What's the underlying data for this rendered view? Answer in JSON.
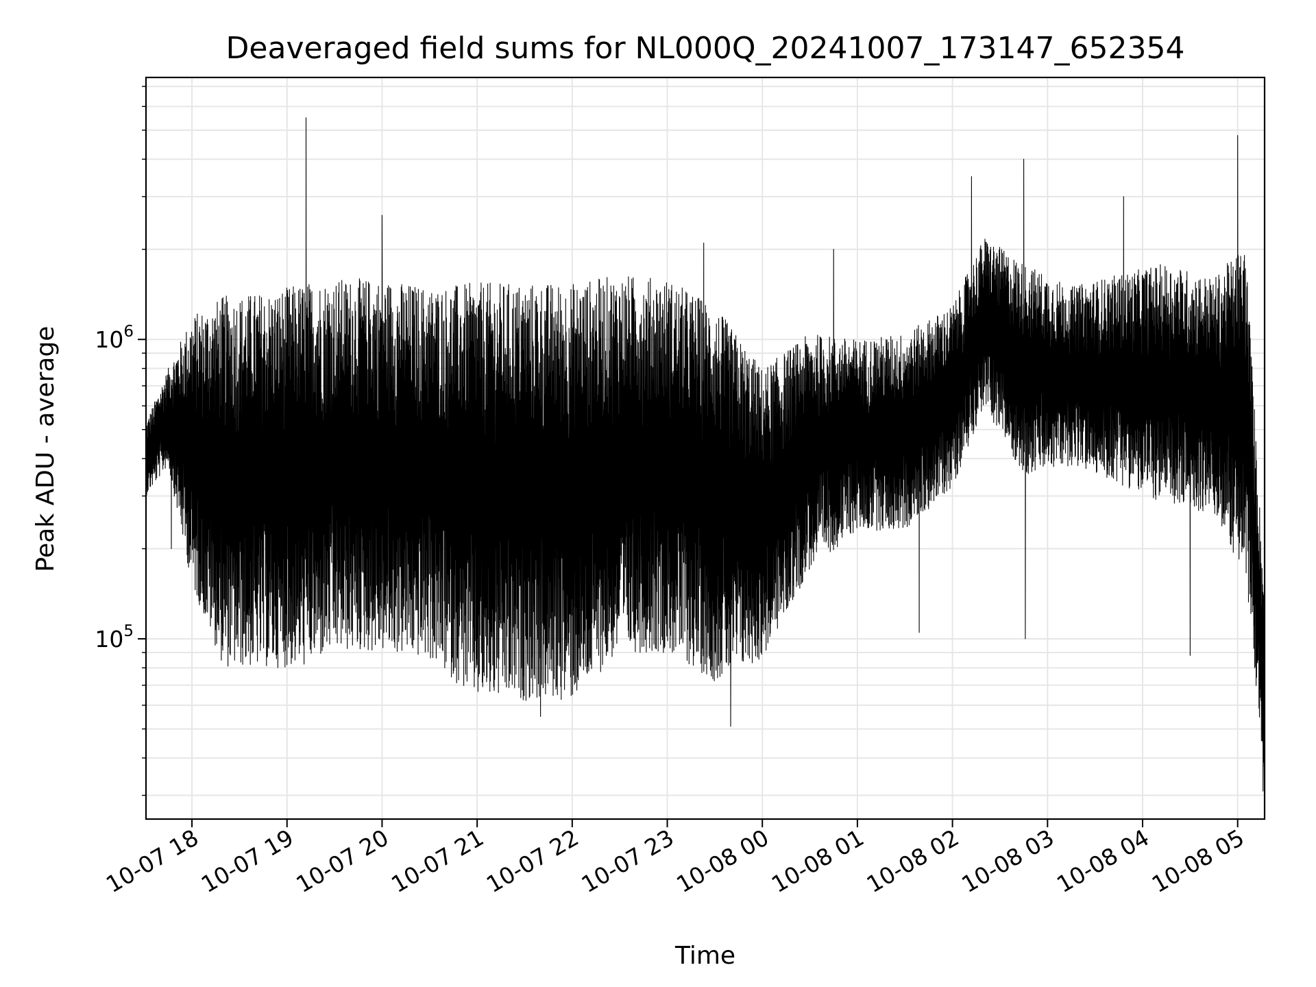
{
  "chart_data": {
    "type": "line",
    "title": "Deaveraged field sums for NL000Q_20241007_173147_652354",
    "xlabel": "Time",
    "ylabel": "Peak ADU - average",
    "yscale": "log",
    "ylim": [
      25000,
      7500000
    ],
    "xlim": [
      "2024-10-07 17:31",
      "2024-10-08 05:17"
    ],
    "grid": true,
    "line_color": "#000000",
    "grid_color": "#e6e6e6",
    "x_ticks": [
      "10-07 18",
      "10-07 19",
      "10-07 20",
      "10-07 21",
      "10-07 22",
      "10-07 23",
      "10-08 00",
      "10-08 01",
      "10-08 02",
      "10-08 03",
      "10-08 04",
      "10-08 05"
    ],
    "y_ticks": [
      {
        "base": "10",
        "exp": "5",
        "value": 100000
      },
      {
        "base": "10",
        "exp": "6",
        "value": 1000000
      }
    ],
    "series": [
      {
        "x": [
          "2024-10-07 17:31",
          "2024-10-07 17:45",
          "2024-10-07 18:00",
          "2024-10-07 18:20",
          "2024-10-07 18:50",
          "2024-10-07 19:10",
          "2024-10-07 19:30",
          "2024-10-07 20:00",
          "2024-10-07 20:30",
          "2024-10-07 21:00",
          "2024-10-07 21:30",
          "2024-10-07 22:00",
          "2024-10-07 22:30",
          "2024-10-07 23:00",
          "2024-10-07 23:30",
          "2024-10-08 00:00",
          "2024-10-08 00:30",
          "2024-10-08 01:00",
          "2024-10-08 01:30",
          "2024-10-08 02:00",
          "2024-10-08 02:20",
          "2024-10-08 02:45",
          "2024-10-08 03:15",
          "2024-10-08 03:45",
          "2024-10-08 04:15",
          "2024-10-08 04:45",
          "2024-10-08 05:05",
          "2024-10-08 05:17"
        ],
        "low": [
          300000,
          380000,
          150000,
          80000,
          80000,
          80000,
          90000,
          90000,
          85000,
          62000,
          62000,
          62000,
          90000,
          90000,
          72000,
          85000,
          170000,
          230000,
          230000,
          320000,
          600000,
          350000,
          380000,
          330000,
          280000,
          260000,
          160000,
          34000
        ],
        "high": [
          530000,
          800000,
          1200000,
          1400000,
          1450000,
          1550000,
          1600000,
          1600000,
          1500000,
          1550000,
          1550000,
          1550000,
          1650000,
          1600000,
          1300000,
          800000,
          1050000,
          1000000,
          1050000,
          1300000,
          2200000,
          1800000,
          1500000,
          1650000,
          1800000,
          1600000,
          2100000,
          140000
        ],
        "peaks": [
          {
            "x": "2024-10-07 19:12",
            "y": 5500000
          },
          {
            "x": "2024-10-07 20:00",
            "y": 2600000
          },
          {
            "x": "2024-10-07 23:23",
            "y": 2100000
          },
          {
            "x": "2024-10-08 00:45",
            "y": 2000000
          },
          {
            "x": "2024-10-08 02:12",
            "y": 3500000
          },
          {
            "x": "2024-10-08 02:45",
            "y": 4000000
          },
          {
            "x": "2024-10-08 03:48",
            "y": 3000000
          },
          {
            "x": "2024-10-08 05:00",
            "y": 4800000
          }
        ],
        "dips": [
          {
            "x": "2024-10-07 17:47",
            "y": 200000
          },
          {
            "x": "2024-10-07 21:40",
            "y": 55000
          },
          {
            "x": "2024-10-07 23:40",
            "y": 51000
          },
          {
            "x": "2024-10-08 01:39",
            "y": 105000
          },
          {
            "x": "2024-10-08 02:46",
            "y": 100000
          },
          {
            "x": "2024-10-08 04:30",
            "y": 88000
          },
          {
            "x": "2024-10-08 05:16",
            "y": 31000
          }
        ]
      }
    ]
  }
}
